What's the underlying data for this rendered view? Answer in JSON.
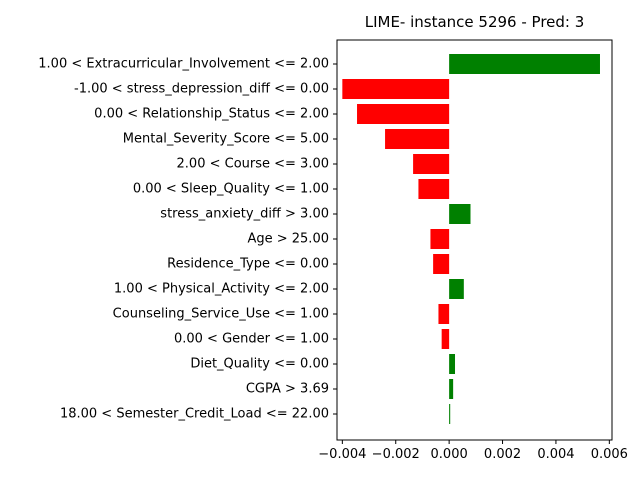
{
  "chart_data": {
    "type": "bar",
    "orientation": "horizontal",
    "title": "LIME- instance 5296 - Pred: 3",
    "xlabel": "",
    "ylabel": "",
    "xlim": [
      -0.0042,
      0.0061
    ],
    "xticks": [
      -0.004,
      -0.002,
      0.0,
      0.002,
      0.004,
      0.006
    ],
    "xtick_labels": [
      "−0.004",
      "−0.002",
      "0.000",
      "0.002",
      "0.004",
      "0.006"
    ],
    "grid": false,
    "legend": "none",
    "colors": {
      "positive": "#008000",
      "negative": "#ff0000"
    },
    "categories": [
      "1.00 < Extracurricular_Involvement <= 2.00",
      "-1.00 < stress_depression_diff <= 0.00",
      "0.00 < Relationship_Status <= 2.00",
      "Mental_Severity_Score <= 5.00",
      "2.00 < Course <= 3.00",
      "0.00 < Sleep_Quality <= 1.00",
      "stress_anxiety_diff > 3.00",
      "Age > 25.00",
      "Residence_Type <= 0.00",
      "1.00 < Physical_Activity <= 2.00",
      "Counseling_Service_Use <= 1.00",
      "0.00 < Gender <= 1.00",
      "Diet_Quality <= 0.00",
      "CGPA > 3.69",
      "18.00 < Semester_Credit_Load <= 22.00"
    ],
    "values": [
      0.00565,
      -0.004,
      -0.00345,
      -0.0024,
      -0.00135,
      -0.00115,
      0.0008,
      -0.0007,
      -0.0006,
      0.00055,
      -0.0004,
      -0.00028,
      0.00022,
      0.00015,
      4e-05
    ]
  }
}
